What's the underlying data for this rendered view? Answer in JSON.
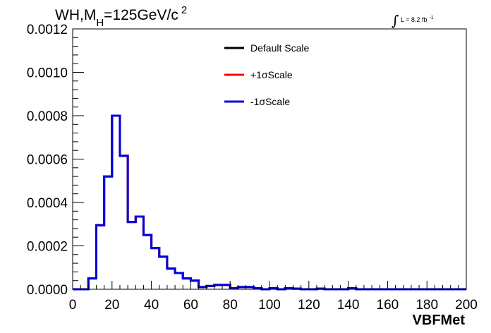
{
  "chart_data": {
    "type": "line",
    "title_parts": {
      "a": "WH,M",
      "sub": "H",
      "b": "=125GeV/c",
      "sup": "2"
    },
    "lumi": {
      "symbol": "∫",
      "text": "L = 8.2 fb",
      "sup": "-1"
    },
    "xlabel": "VBFMet",
    "ylabel": "",
    "xlim": [
      0,
      200
    ],
    "ylim": [
      0,
      0.0012
    ],
    "x_ticks": [
      "0",
      "20",
      "40",
      "60",
      "80",
      "100",
      "120",
      "140",
      "160",
      "180",
      "200"
    ],
    "y_ticks": [
      "0.0000",
      "0.0002",
      "0.0004",
      "0.0006",
      "0.0008",
      "0.0010",
      "0.0012"
    ],
    "bin_edges": [
      0,
      4,
      8,
      12,
      16,
      20,
      24,
      28,
      32,
      36,
      40,
      44,
      48,
      52,
      56,
      60,
      64,
      68,
      72,
      76,
      80,
      84,
      88,
      92,
      96,
      100,
      104,
      108,
      112,
      116,
      120,
      124,
      128,
      132,
      136,
      140,
      144,
      148,
      152,
      156,
      160,
      164,
      168,
      172,
      176,
      180,
      184,
      188,
      192,
      196,
      200
    ],
    "series": [
      {
        "name": "Default Scale",
        "color": "#000000",
        "values": [
          0,
          0,
          5e-05,
          0.000295,
          0.00052,
          0.0008,
          0.000615,
          0.00031,
          0.000335,
          0.00025,
          0.00019,
          0.00015,
          9.5e-05,
          7.5e-05,
          5e-05,
          4e-05,
          1e-05,
          1.5e-05,
          2e-05,
          2e-05,
          5e-06,
          1e-05,
          1e-05,
          5e-06,
          0,
          5e-06,
          0,
          5e-06,
          3e-06,
          0,
          0,
          3e-06,
          0,
          0,
          0,
          5e-06,
          0,
          0,
          0,
          0,
          0,
          0,
          0,
          0,
          0,
          0,
          0,
          0,
          0,
          0
        ]
      },
      {
        "name": "+1σScale",
        "color": "#ff0000",
        "values": [
          0,
          0,
          5e-05,
          0.000295,
          0.00052,
          0.0008,
          0.000615,
          0.00031,
          0.000335,
          0.00025,
          0.00019,
          0.00015,
          9.5e-05,
          7.5e-05,
          5e-05,
          4e-05,
          1e-05,
          1.5e-05,
          2e-05,
          2e-05,
          5e-06,
          1e-05,
          1e-05,
          5e-06,
          0,
          5e-06,
          0,
          5e-06,
          3e-06,
          0,
          0,
          3e-06,
          0,
          0,
          0,
          5e-06,
          0,
          0,
          0,
          0,
          0,
          0,
          0,
          0,
          0,
          0,
          0,
          0,
          0,
          0
        ]
      },
      {
        "name": "-1σScale",
        "color": "#0000dd",
        "values": [
          0,
          0,
          5e-05,
          0.000295,
          0.00052,
          0.0008,
          0.000615,
          0.00031,
          0.000335,
          0.00025,
          0.00019,
          0.00015,
          9.5e-05,
          7.5e-05,
          5e-05,
          4e-05,
          1e-05,
          1.5e-05,
          2e-05,
          2e-05,
          5e-06,
          1e-05,
          1e-05,
          5e-06,
          0,
          5e-06,
          0,
          5e-06,
          3e-06,
          0,
          0,
          3e-06,
          0,
          0,
          0,
          5e-06,
          0,
          0,
          0,
          0,
          0,
          0,
          0,
          0,
          0,
          0,
          0,
          0,
          0,
          0
        ]
      }
    ],
    "grid": false,
    "legend_position": "top-center"
  }
}
